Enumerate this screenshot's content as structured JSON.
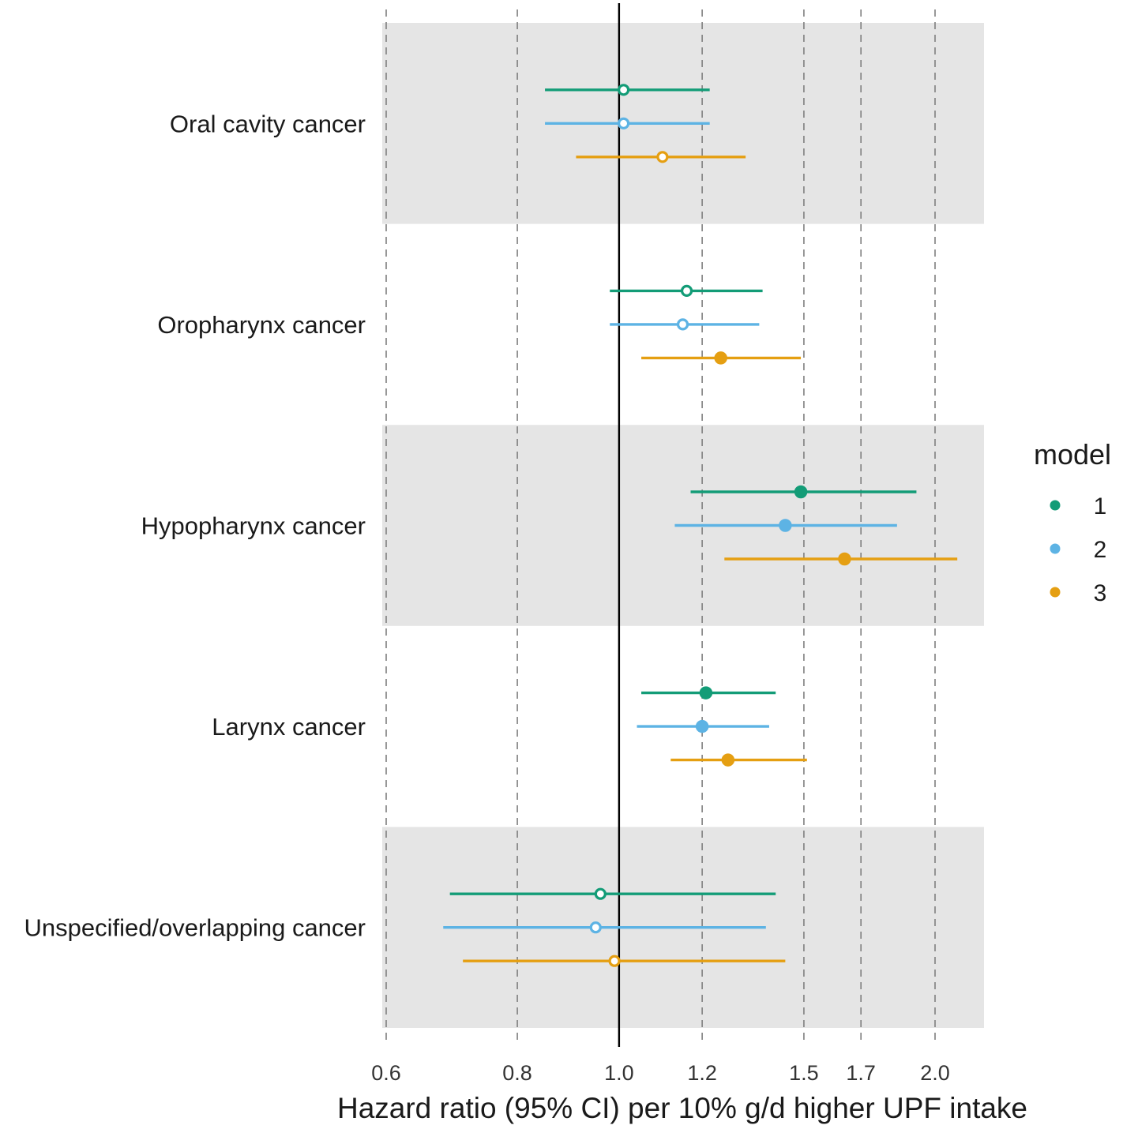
{
  "chart_data": {
    "type": "forest",
    "xlabel": "Hazard ratio (95% CI) per 10% g/d higher UPF intake",
    "ylabel": "",
    "x_scale": "log",
    "xlim": [
      0.6,
      2.12
    ],
    "x_ticks": [
      0.6,
      0.8,
      1.0,
      1.2,
      1.5,
      1.7,
      2.0
    ],
    "x_tick_labels": [
      "0.6",
      "0.8",
      "1.0",
      "1.2",
      "1.5",
      "1.7",
      "2.0"
    ],
    "reference_line": 1.0,
    "grid": "vertical dashed at ticks",
    "legend": {
      "title": "model",
      "placement": "right"
    },
    "categories": [
      "Oral cavity cancer",
      "Oropharynx cancer",
      "Hypopharynx cancer",
      "Larynx cancer",
      "Unspecified/overlapping cancer"
    ],
    "series": [
      {
        "name": "1",
        "color": "#139c77",
        "points": [
          {
            "hr": 1.01,
            "lo": 0.85,
            "hi": 1.22,
            "significant": false
          },
          {
            "hr": 1.16,
            "lo": 0.98,
            "hi": 1.37,
            "significant": false
          },
          {
            "hr": 1.49,
            "lo": 1.17,
            "hi": 1.92,
            "significant": true
          },
          {
            "hr": 1.21,
            "lo": 1.05,
            "hi": 1.41,
            "significant": true
          },
          {
            "hr": 0.96,
            "lo": 0.69,
            "hi": 1.41,
            "significant": false
          }
        ]
      },
      {
        "name": "2",
        "color": "#5db3e4",
        "points": [
          {
            "hr": 1.01,
            "lo": 0.85,
            "hi": 1.22,
            "significant": false
          },
          {
            "hr": 1.15,
            "lo": 0.98,
            "hi": 1.36,
            "significant": false
          },
          {
            "hr": 1.44,
            "lo": 1.13,
            "hi": 1.84,
            "significant": true
          },
          {
            "hr": 1.2,
            "lo": 1.04,
            "hi": 1.39,
            "significant": true
          },
          {
            "hr": 0.95,
            "lo": 0.68,
            "hi": 1.38,
            "significant": false
          }
        ]
      },
      {
        "name": "3",
        "color": "#e59f12",
        "points": [
          {
            "hr": 1.1,
            "lo": 0.91,
            "hi": 1.32,
            "significant": false
          },
          {
            "hr": 1.25,
            "lo": 1.05,
            "hi": 1.49,
            "significant": true
          },
          {
            "hr": 1.64,
            "lo": 1.26,
            "hi": 2.1,
            "significant": true
          },
          {
            "hr": 1.27,
            "lo": 1.12,
            "hi": 1.51,
            "significant": true
          },
          {
            "hr": 0.99,
            "lo": 0.71,
            "hi": 1.44,
            "significant": false
          }
        ]
      }
    ]
  }
}
